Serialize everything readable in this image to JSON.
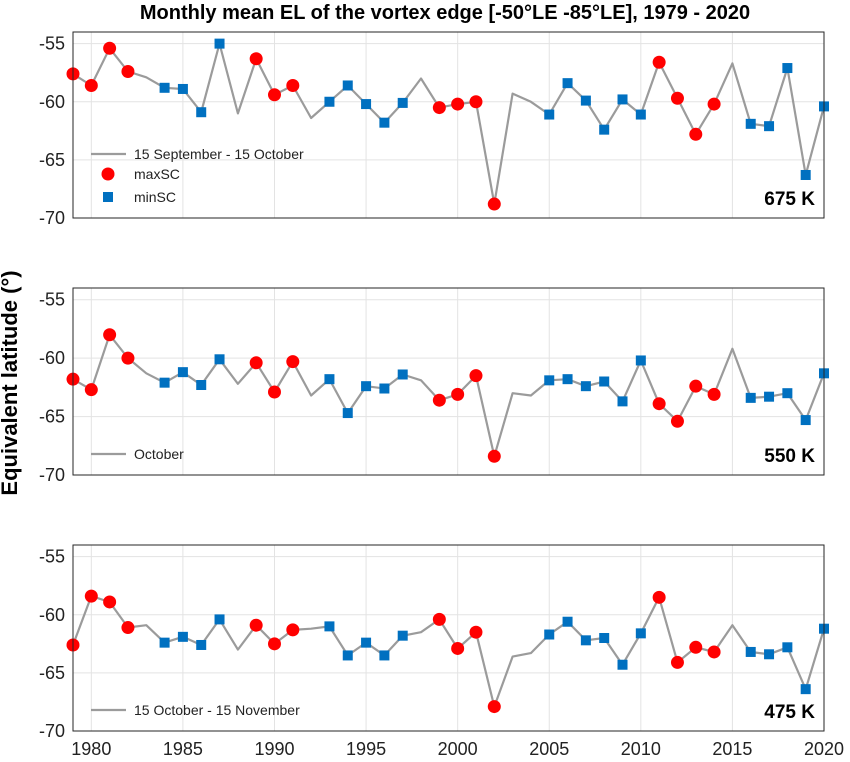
{
  "chart_data": {
    "title": "Monthly mean EL of the vortex edge [-50°LE -85°LE], 1979 - 2020",
    "ylabel": "Equivalent latitude (°)",
    "xlabel": "",
    "xlim": [
      1979,
      2020
    ],
    "ylim": [
      -70,
      -54
    ],
    "xticks": [
      1980,
      1985,
      1990,
      1995,
      2000,
      2005,
      2010,
      2015,
      2020
    ],
    "yticks": [
      -55,
      -60,
      -65,
      -70
    ],
    "legend_markers": [
      {
        "name": "maxSC",
        "color": "#ff0000",
        "marker": "circle"
      },
      {
        "name": "minSC",
        "color": "#0070c0",
        "marker": "square"
      }
    ],
    "line_color": "#9b9b9b",
    "panels": [
      {
        "type": "line",
        "level": "675 K",
        "series_name": "15 September - 15 October",
        "show_marker_legend": true,
        "x": [
          1979,
          1980,
          1981,
          1982,
          1983,
          1984,
          1985,
          1986,
          1987,
          1988,
          1989,
          1990,
          1991,
          1992,
          1993,
          1994,
          1995,
          1996,
          1997,
          1998,
          1999,
          2000,
          2001,
          2002,
          2003,
          2004,
          2005,
          2006,
          2007,
          2008,
          2009,
          2010,
          2011,
          2012,
          2013,
          2014,
          2015,
          2016,
          2017,
          2018,
          2019,
          2020
        ],
        "y": [
          -57.6,
          -58.6,
          -55.4,
          -57.4,
          -57.9,
          -58.8,
          -58.9,
          -60.9,
          -55.0,
          -61.0,
          -56.3,
          -59.4,
          -58.6,
          -61.4,
          -60.0,
          -58.6,
          -60.2,
          -61.8,
          -60.1,
          -58.0,
          -60.5,
          -60.2,
          -60.0,
          -68.8,
          -59.3,
          -60.0,
          -61.1,
          -58.4,
          -59.9,
          -62.4,
          -59.8,
          -61.1,
          -56.6,
          -59.7,
          -62.8,
          -60.2,
          -56.7,
          -61.9,
          -62.1,
          -57.1,
          -66.3,
          -60.4
        ],
        "maxSC": [
          1979,
          1980,
          1981,
          1982,
          1989,
          1990,
          1991,
          1999,
          2000,
          2001,
          2002,
          2011,
          2012,
          2013,
          2014
        ],
        "minSC": [
          1984,
          1985,
          1986,
          1987,
          1993,
          1994,
          1995,
          1996,
          1997,
          2005,
          2006,
          2007,
          2008,
          2009,
          2010,
          2016,
          2017,
          2018,
          2019,
          2020
        ]
      },
      {
        "type": "line",
        "level": "550 K",
        "series_name": "October",
        "show_marker_legend": false,
        "x": [
          1979,
          1980,
          1981,
          1982,
          1983,
          1984,
          1985,
          1986,
          1987,
          1988,
          1989,
          1990,
          1991,
          1992,
          1993,
          1994,
          1995,
          1996,
          1997,
          1998,
          1999,
          2000,
          2001,
          2002,
          2003,
          2004,
          2005,
          2006,
          2007,
          2008,
          2009,
          2010,
          2011,
          2012,
          2013,
          2014,
          2015,
          2016,
          2017,
          2018,
          2019,
          2020
        ],
        "y": [
          -61.8,
          -62.7,
          -58.0,
          -60.0,
          -61.3,
          -62.1,
          -61.2,
          -62.3,
          -60.1,
          -62.2,
          -60.4,
          -62.9,
          -60.3,
          -63.2,
          -61.8,
          -64.7,
          -62.4,
          -62.6,
          -61.4,
          -61.9,
          -63.6,
          -63.1,
          -61.5,
          -68.4,
          -63.0,
          -63.2,
          -61.9,
          -61.8,
          -62.4,
          -62.0,
          -63.7,
          -60.2,
          -63.9,
          -65.4,
          -62.4,
          -63.1,
          -59.2,
          -63.4,
          -63.3,
          -63.0,
          -65.3,
          -61.3
        ],
        "maxSC": [
          1979,
          1980,
          1981,
          1982,
          1989,
          1990,
          1991,
          1999,
          2000,
          2001,
          2002,
          2011,
          2012,
          2013,
          2014
        ],
        "minSC": [
          1984,
          1985,
          1986,
          1987,
          1993,
          1994,
          1995,
          1996,
          1997,
          2005,
          2006,
          2007,
          2008,
          2009,
          2010,
          2016,
          2017,
          2018,
          2019,
          2020
        ]
      },
      {
        "type": "line",
        "level": "475 K",
        "series_name": "15 October - 15 November",
        "show_marker_legend": false,
        "x": [
          1979,
          1980,
          1981,
          1982,
          1983,
          1984,
          1985,
          1986,
          1987,
          1988,
          1989,
          1990,
          1991,
          1992,
          1993,
          1994,
          1995,
          1996,
          1997,
          1998,
          1999,
          2000,
          2001,
          2002,
          2003,
          2004,
          2005,
          2006,
          2007,
          2008,
          2009,
          2010,
          2011,
          2012,
          2013,
          2014,
          2015,
          2016,
          2017,
          2018,
          2019,
          2020
        ],
        "y": [
          -62.6,
          -58.4,
          -58.9,
          -61.1,
          -60.9,
          -62.4,
          -61.9,
          -62.6,
          -60.4,
          -63.0,
          -60.9,
          -62.5,
          -61.3,
          -61.2,
          -61.0,
          -63.5,
          -62.4,
          -63.5,
          -61.8,
          -61.5,
          -60.4,
          -62.9,
          -61.5,
          -67.9,
          -63.6,
          -63.3,
          -61.7,
          -60.6,
          -62.2,
          -62.0,
          -64.3,
          -61.6,
          -58.5,
          -64.1,
          -62.8,
          -63.2,
          -60.9,
          -63.2,
          -63.4,
          -62.8,
          -66.4,
          -61.2
        ],
        "maxSC": [
          1979,
          1980,
          1981,
          1982,
          1989,
          1990,
          1991,
          1999,
          2000,
          2001,
          2002,
          2011,
          2012,
          2013,
          2014
        ],
        "minSC": [
          1984,
          1985,
          1986,
          1987,
          1993,
          1994,
          1995,
          1996,
          1997,
          2005,
          2006,
          2007,
          2008,
          2009,
          2010,
          2016,
          2017,
          2018,
          2019,
          2020
        ]
      }
    ]
  }
}
